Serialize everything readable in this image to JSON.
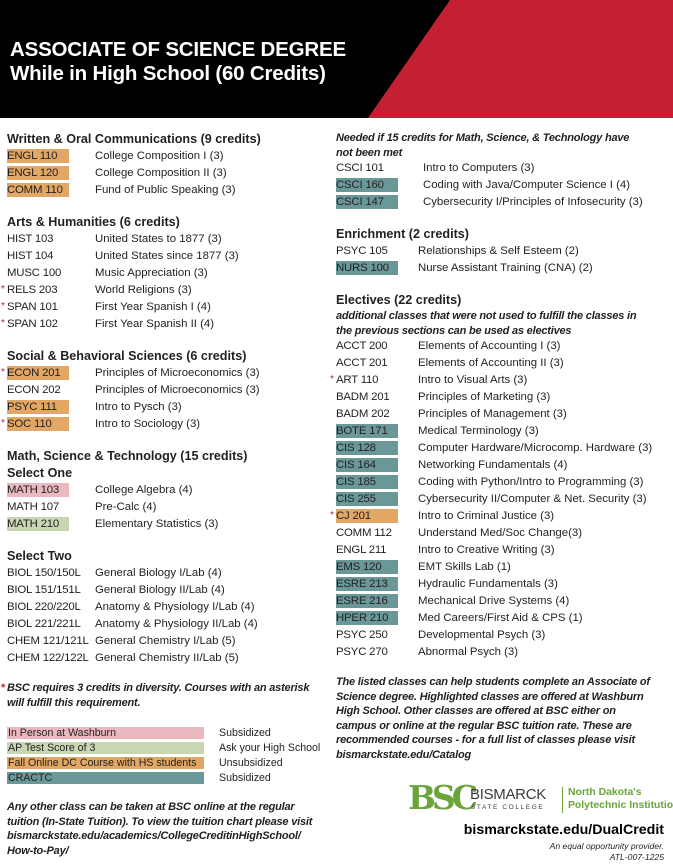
{
  "header": {
    "title_line1": "ASSOCIATE OF SCIENCE DEGREE",
    "title_line2": "While in High School (60 Credits)",
    "colors": {
      "black": "#000000",
      "red": "#c52032"
    }
  },
  "colors": {
    "in_person": "#eab9bf",
    "ap_test": "#c9d6b4",
    "fall_online": "#e2a765",
    "cractc": "#6a9898"
  },
  "left_sections": [
    {
      "heading": "Written & Oral Communications (9 credits)",
      "rows": [
        {
          "code": "ENGL 110",
          "name": "College Composition I (3)",
          "hl": "fall_online"
        },
        {
          "code": "ENGL 120",
          "name": "College Composition II (3)",
          "hl": "fall_online"
        },
        {
          "code": "COMM 110",
          "name": "Fund of Public Speaking (3)",
          "hl": "fall_online"
        }
      ]
    },
    {
      "heading": "Arts & Humanities (6 credits)",
      "rows": [
        {
          "code": "HIST 103",
          "name": "United States to 1877 (3)"
        },
        {
          "code": "HIST 104",
          "name": "United States since 1877 (3)"
        },
        {
          "code": "MUSC 100",
          "name": "Music Appreciation (3)"
        },
        {
          "code": "RELS 203",
          "name": "World Religions (3)",
          "star": true
        },
        {
          "code": "SPAN 101",
          "name": "First Year Spanish I (4)",
          "star": true
        },
        {
          "code": "SPAN 102",
          "name": "First Year Spanish II (4)",
          "star": true
        }
      ]
    },
    {
      "heading": "Social & Behavioral Sciences (6 credits)",
      "rows": [
        {
          "code": "ECON 201",
          "name": "Principles of Microeconomics (3)",
          "hl": "fall_online",
          "star": true
        },
        {
          "code": "ECON 202",
          "name": "Principles of Microeconomics (3)"
        },
        {
          "code": "PSYC 111",
          "name": "Intro to Pysch (3)",
          "hl": "fall_online"
        },
        {
          "code": "SOC 110",
          "name": "Intro to Sociology (3)",
          "hl": "fall_online",
          "star": true
        }
      ]
    },
    {
      "heading": "Math, Science & Technology (15 credits)",
      "subheading": "Select One",
      "rows": [
        {
          "code": "MATH 103",
          "name": "College Algebra (4)",
          "hl": "in_person"
        },
        {
          "code": "MATH 107",
          "name": "Pre-Calc (4)"
        },
        {
          "code": "MATH 210",
          "name": "Elementary Statistics (3)",
          "hl": "ap_test"
        }
      ]
    },
    {
      "heading": "Select Two",
      "rows": [
        {
          "code": "BIOL 150/150L",
          "name": "General Biology I/Lab (4)"
        },
        {
          "code": "BIOL 151/151L",
          "name": "General Biology II/Lab (4)"
        },
        {
          "code": "BIOL 220/220L",
          "name": "Anatomy & Physiology I/Lab (4)"
        },
        {
          "code": "BIOL 221/221L",
          "name": "Anatomy & Physiology II/Lab (4)"
        },
        {
          "code": "CHEM 121/121L",
          "name": "General Chemistry I/Lab (5)"
        },
        {
          "code": "CHEM 122/122L",
          "name": "General Chemistry II/Lab (5)"
        }
      ]
    }
  ],
  "diversity_note": {
    "star": "*",
    "line1": "BSC requires 3 credits in diversity. Courses with an asterisk",
    "line2": "will fulfill this requirement."
  },
  "legend": [
    {
      "label": "In Person at Washburn",
      "value": "Subsidized",
      "hl": "in_person"
    },
    {
      "label": "AP Test Score of 3",
      "value": "Ask your High School",
      "hl": "ap_test"
    },
    {
      "label": "Fall Online DC Course with HS students",
      "value": "Unsubsidized",
      "hl": "fall_online"
    },
    {
      "label": "CRACTC",
      "value": "Subsidized",
      "hl": "cractc"
    }
  ],
  "tuition_note": [
    "Any other class can be taken at BSC online at the regular",
    "tuition (In-State Tuition). To view the tuition chart please visit",
    "bismarckstate.edu/academics/CollegeCreditinHighSchool/",
    "How-to-Pay/"
  ],
  "right_sections": [
    {
      "italic_heading": [
        "Needed if 15 credits for Math, Science, & Technology have",
        "not been met"
      ],
      "name_offset": "wide",
      "rows": [
        {
          "code": "CSCI 101",
          "name": "Intro to Computers (3)"
        },
        {
          "code": "CSCI 160",
          "name": "Coding with Java/Computer Science I (4)",
          "hl": "cractc"
        },
        {
          "code": "CSCI 147",
          "name": "Cybersecurity I/Principles of Infosecurity (3)",
          "hl": "cractc"
        }
      ]
    },
    {
      "heading": "Enrichment (2 credits)",
      "rows": [
        {
          "code": "PSYC 105",
          "name": "Relationships & Self Esteem (2)"
        },
        {
          "code": "NURS 100",
          "name": "Nurse Assistant Training (CNA) (2)",
          "hl": "cractc"
        }
      ]
    },
    {
      "heading": "Electives (22 credits)",
      "italic_heading": [
        "additional classes that were not used to fulfill the classes in",
        "the previous sections can be used as electives"
      ],
      "rows": [
        {
          "code": "ACCT 200",
          "name": "Elements of Accounting I (3)"
        },
        {
          "code": "ACCT 201",
          "name": "Elements of Accounting II (3)"
        },
        {
          "code": "ART 110",
          "name": "Intro to Visual Arts (3)",
          "star": true
        },
        {
          "code": "BADM 201",
          "name": "Principles of Marketing (3)"
        },
        {
          "code": "BADM 202",
          "name": "Principles of Management (3)"
        },
        {
          "code": "BOTE 171",
          "name": "Medical Terminology (3)",
          "hl": "cractc"
        },
        {
          "code": "CIS 128",
          "name": "Computer Hardware/Microcomp. Hardware (3)",
          "hl": "cractc"
        },
        {
          "code": "CIS 164",
          "name": "Networking Fundamentals (4)",
          "hl": "cractc"
        },
        {
          "code": "CIS 185",
          "name": "Coding with Python/Intro to Programming (3)",
          "hl": "cractc"
        },
        {
          "code": "CIS 255",
          "name": "Cybersecurity II/Computer & Net. Security (3)",
          "hl": "cractc"
        },
        {
          "code": "CJ 201",
          "name": "Intro to Criminal Justice (3)",
          "hl": "fall_online",
          "star": true
        },
        {
          "code": "COMM 112",
          "name": "Understand Med/Soc Change(3)"
        },
        {
          "code": "ENGL 211",
          "name": "Intro to Creative Writing (3)"
        },
        {
          "code": "EMS 120",
          "name": "EMT Skills Lab (1)",
          "hl": "cractc"
        },
        {
          "code": "ESRE 213",
          "name": "Hydraulic Fundamentals (3)",
          "hl": "cractc"
        },
        {
          "code": "ESRE 216",
          "name": "Mechanical Drive Systems (4)",
          "hl": "cractc"
        },
        {
          "code": "HPER 210",
          "name": "Med Careers/First Aid & CPS (1)",
          "hl": "cractc"
        },
        {
          "code": "PSYC 250",
          "name": "Developmental Psych (3)"
        },
        {
          "code": "PSYC 270",
          "name": "Abnormal Psych (3)"
        }
      ]
    }
  ],
  "closing_note": [
    "The listed classes can help students complete an Associate of",
    "Science degree. Highlighted classes are offered at Washburn",
    "High School. Other classes are offered at BSC either on",
    "campus or online at the regular BSC tuition rate. These are",
    "recommended courses - for a full list of classes please visit",
    "bismarckstate.edu/Catalog"
  ],
  "footer": {
    "logo_mark": "BSC",
    "logo_name": "BISMARCK",
    "logo_sub": "STATE COLLEGE",
    "tagline1": "North Dakota's",
    "tagline2": "Polytechnic Institution",
    "url": "bismarckstate.edu/DualCredit",
    "eo": "An equal opportunity provider.",
    "code": "ATL-007-1225",
    "logo_color": "#6aa43a"
  }
}
